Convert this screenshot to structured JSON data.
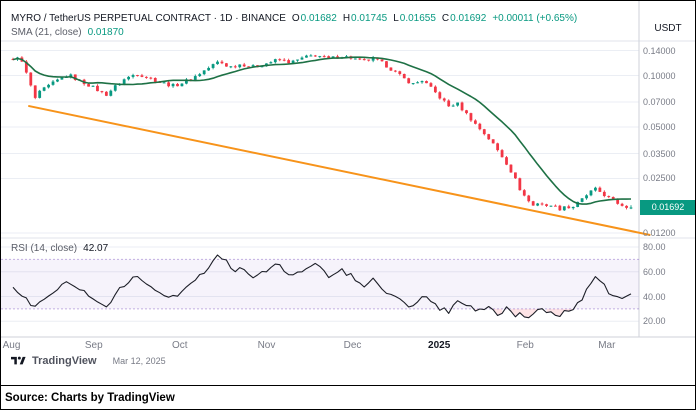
{
  "header": {
    "symbol": "MYRO / TetherUS PERPETUAL CONTRACT · 1D · BINANCE",
    "ohlc": [
      {
        "k": "O",
        "v": "0.01682"
      },
      {
        "k": "H",
        "v": "0.01745"
      },
      {
        "k": "L",
        "v": "0.01655"
      },
      {
        "k": "C",
        "v": "0.01692"
      }
    ],
    "change": "+0.00011 (+0.65%)",
    "sma_label": "SMA (21, close)",
    "sma_value": "0.01870"
  },
  "rsi_legend": {
    "label": "RSI (14, close)",
    "value": "42.07"
  },
  "axis": {
    "currency": "USDT",
    "price_ticks": [
      {
        "label": "0.14000",
        "value": 0.14
      },
      {
        "label": "0.10000",
        "value": 0.1
      },
      {
        "label": "0.07000",
        "value": 0.07
      },
      {
        "label": "0.05000",
        "value": 0.05
      },
      {
        "label": "0.03500",
        "value": 0.035
      },
      {
        "label": "0.02500",
        "value": 0.025
      },
      {
        "label": "0.01200",
        "value": 0.012
      }
    ],
    "last_price": {
      "label": "0.01692",
      "value": 0.01692
    },
    "rsi_ticks": [
      {
        "label": "80.00",
        "value": 80
      },
      {
        "label": "60.00",
        "value": 60
      },
      {
        "label": "40.00",
        "value": 40
      },
      {
        "label": "20.00",
        "value": 20
      }
    ],
    "months": [
      {
        "label": "Aug",
        "f": 0.004,
        "bold": false
      },
      {
        "label": "Sep",
        "f": 0.135,
        "bold": false
      },
      {
        "label": "Oct",
        "f": 0.272,
        "bold": false
      },
      {
        "label": "Nov",
        "f": 0.41,
        "bold": false
      },
      {
        "label": "Dec",
        "f": 0.547,
        "bold": false
      },
      {
        "label": "2025",
        "f": 0.685,
        "bold": true
      },
      {
        "label": "Feb",
        "f": 0.822,
        "bold": false
      },
      {
        "label": "Mar",
        "f": 0.952,
        "bold": false
      }
    ]
  },
  "footer": {
    "brand": "TradingView",
    "date": "Mar 12, 2025",
    "source": "Source: Charts by TradingView"
  },
  "colors": {
    "up": "#089981",
    "down": "#F23645",
    "sma": "#1e7145",
    "trendline": "#F7931A",
    "rsi_line": "#1c1e27",
    "rsi_band_fill": "rgba(126,87,194,0.07)",
    "rsi_band_edge": "rgba(126,87,194,0.45)",
    "rsi_oversold_fill": "rgba(242,54,69,0.14)",
    "grid": "#ebeef4",
    "frame": "#cfd2da",
    "badge_bg": "#089981"
  },
  "chart_data": {
    "type": "candlestick",
    "title": "MYRO / TetherUS Perpetual Contract, 1D, Binance",
    "ylabel": "Price (USDT)",
    "y_scale": "log",
    "ylim": [
      0.0105,
      0.155
    ],
    "x_range": [
      "Aug 2024",
      "Mar 12, 2025"
    ],
    "num_candles": 140,
    "last_candle": {
      "o": 0.01682,
      "h": 0.01745,
      "l": 0.01655,
      "c": 0.01692
    },
    "overlays": [
      {
        "name": "SMA",
        "period": 21,
        "source": "close",
        "last_value": 0.0187
      },
      {
        "name": "descending trendline",
        "color": "#F7931A"
      }
    ],
    "close_path": [
      [
        0.0,
        0.122
      ],
      [
        0.008,
        0.131
      ],
      [
        0.018,
        0.112
      ],
      [
        0.028,
        0.088
      ],
      [
        0.035,
        0.073
      ],
      [
        0.045,
        0.081
      ],
      [
        0.06,
        0.088
      ],
      [
        0.075,
        0.095
      ],
      [
        0.09,
        0.101
      ],
      [
        0.105,
        0.094
      ],
      [
        0.12,
        0.089
      ],
      [
        0.135,
        0.083
      ],
      [
        0.15,
        0.077
      ],
      [
        0.165,
        0.086
      ],
      [
        0.18,
        0.095
      ],
      [
        0.2,
        0.103
      ],
      [
        0.22,
        0.097
      ],
      [
        0.24,
        0.091
      ],
      [
        0.26,
        0.087
      ],
      [
        0.275,
        0.091
      ],
      [
        0.295,
        0.099
      ],
      [
        0.315,
        0.11
      ],
      [
        0.333,
        0.121
      ],
      [
        0.35,
        0.112
      ],
      [
        0.37,
        0.117
      ],
      [
        0.39,
        0.112
      ],
      [
        0.41,
        0.118
      ],
      [
        0.43,
        0.124
      ],
      [
        0.45,
        0.119
      ],
      [
        0.47,
        0.127
      ],
      [
        0.49,
        0.132
      ],
      [
        0.51,
        0.125
      ],
      [
        0.53,
        0.13
      ],
      [
        0.547,
        0.127
      ],
      [
        0.565,
        0.121
      ],
      [
        0.583,
        0.125
      ],
      [
        0.6,
        0.117
      ],
      [
        0.615,
        0.107
      ],
      [
        0.632,
        0.096
      ],
      [
        0.648,
        0.089
      ],
      [
        0.662,
        0.094
      ],
      [
        0.678,
        0.083
      ],
      [
        0.69,
        0.075
      ],
      [
        0.705,
        0.066
      ],
      [
        0.718,
        0.069
      ],
      [
        0.733,
        0.06
      ],
      [
        0.75,
        0.051
      ],
      [
        0.767,
        0.044
      ],
      [
        0.783,
        0.037
      ],
      [
        0.798,
        0.031
      ],
      [
        0.812,
        0.025
      ],
      [
        0.822,
        0.021
      ],
      [
        0.832,
        0.0188
      ],
      [
        0.842,
        0.0173
      ],
      [
        0.852,
        0.0184
      ],
      [
        0.862,
        0.0169
      ],
      [
        0.872,
        0.0179
      ],
      [
        0.882,
        0.0164
      ],
      [
        0.892,
        0.0173
      ],
      [
        0.902,
        0.0167
      ],
      [
        0.912,
        0.0177
      ],
      [
        0.922,
        0.019
      ],
      [
        0.932,
        0.0206
      ],
      [
        0.942,
        0.0216
      ],
      [
        0.952,
        0.0207
      ],
      [
        0.962,
        0.0194
      ],
      [
        0.972,
        0.0184
      ],
      [
        0.982,
        0.0177
      ],
      [
        0.992,
        0.0171
      ],
      [
        1.0,
        0.01692
      ]
    ],
    "trendline_points": [
      [
        0.026,
        0.0663
      ],
      [
        1.03,
        0.0117
      ]
    ],
    "rsi": {
      "period": 14,
      "last_value": 42.07,
      "band": [
        30,
        70
      ],
      "path": [
        [
          0.0,
          48
        ],
        [
          0.015,
          40
        ],
        [
          0.035,
          31
        ],
        [
          0.055,
          41
        ],
        [
          0.075,
          48
        ],
        [
          0.09,
          53
        ],
        [
          0.105,
          46
        ],
        [
          0.12,
          42
        ],
        [
          0.135,
          37
        ],
        [
          0.15,
          31
        ],
        [
          0.165,
          42
        ],
        [
          0.18,
          49
        ],
        [
          0.2,
          56
        ],
        [
          0.22,
          48
        ],
        [
          0.24,
          43
        ],
        [
          0.26,
          39
        ],
        [
          0.28,
          48
        ],
        [
          0.3,
          57
        ],
        [
          0.32,
          65
        ],
        [
          0.333,
          74
        ],
        [
          0.345,
          69
        ],
        [
          0.355,
          59
        ],
        [
          0.37,
          65
        ],
        [
          0.39,
          54
        ],
        [
          0.41,
          61
        ],
        [
          0.43,
          66
        ],
        [
          0.45,
          56
        ],
        [
          0.47,
          62
        ],
        [
          0.49,
          67
        ],
        [
          0.51,
          55
        ],
        [
          0.53,
          61
        ],
        [
          0.547,
          57
        ],
        [
          0.565,
          48
        ],
        [
          0.583,
          53
        ],
        [
          0.6,
          45
        ],
        [
          0.615,
          40
        ],
        [
          0.632,
          35
        ],
        [
          0.648,
          32
        ],
        [
          0.662,
          41
        ],
        [
          0.678,
          34
        ],
        [
          0.69,
          30
        ],
        [
          0.705,
          28
        ],
        [
          0.718,
          37
        ],
        [
          0.733,
          33
        ],
        [
          0.75,
          28
        ],
        [
          0.767,
          32
        ],
        [
          0.783,
          26
        ],
        [
          0.798,
          30
        ],
        [
          0.812,
          24
        ],
        [
          0.822,
          27
        ],
        [
          0.832,
          22
        ],
        [
          0.842,
          27
        ],
        [
          0.852,
          32
        ],
        [
          0.862,
          26
        ],
        [
          0.872,
          30
        ],
        [
          0.882,
          24
        ],
        [
          0.892,
          28
        ],
        [
          0.902,
          26
        ],
        [
          0.912,
          32
        ],
        [
          0.922,
          39
        ],
        [
          0.932,
          49
        ],
        [
          0.942,
          56
        ],
        [
          0.952,
          51
        ],
        [
          0.962,
          45
        ],
        [
          0.972,
          40
        ],
        [
          0.982,
          37
        ],
        [
          0.992,
          39
        ],
        [
          1.0,
          42.07
        ]
      ]
    }
  }
}
